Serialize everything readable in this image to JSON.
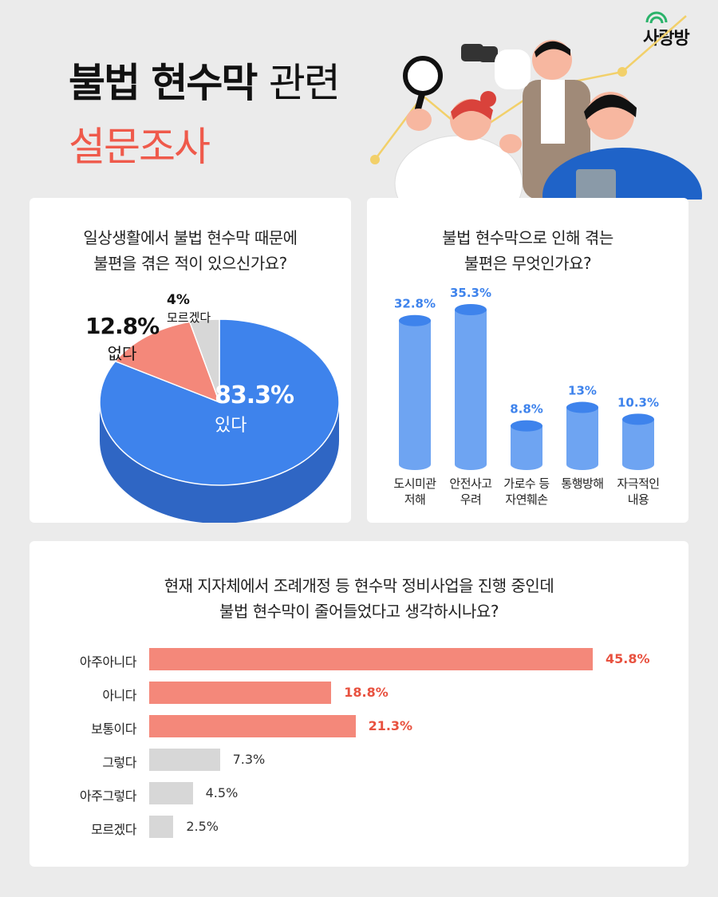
{
  "header": {
    "title_bold": "불법 현수막",
    "title_light": "관련",
    "title_line2": "설문조사",
    "logo_text": "사랑방"
  },
  "colors": {
    "blue": "#3e83ec",
    "blue_dark": "#2f66c4",
    "salmon": "#f4887a",
    "salmon_dark": "#d46a5e",
    "gray": "#d7d7d7",
    "gray_dark": "#b9b9b9",
    "bar_blue": "#6ea4f2",
    "accent_red": "#e8513f"
  },
  "survey1": {
    "question_line1": "일상생활에서 불법 현수막 때문에",
    "question_line2": "불편을 겪은 적이 있으신가요?",
    "slices": [
      {
        "pct": "83.3%",
        "label": "있다"
      },
      {
        "pct": "12.8%",
        "label": "없다"
      },
      {
        "pct": "4%",
        "label": "모르겠다"
      }
    ]
  },
  "survey2": {
    "question_line1": "불법 현수막으로 인해 겪는",
    "question_line2": "불편은 무엇인가요?",
    "bars": [
      {
        "value_label": "32.8%",
        "cap1": "도시미관",
        "cap2": "저해"
      },
      {
        "value_label": "35.3%",
        "cap1": "안전사고",
        "cap2": "우려"
      },
      {
        "value_label": "8.8%",
        "cap1": "가로수 등",
        "cap2": "자연훼손"
      },
      {
        "value_label": "13%",
        "cap1": "통행방해",
        "cap2": ""
      },
      {
        "value_label": "10.3%",
        "cap1": "자극적인",
        "cap2": "내용"
      }
    ]
  },
  "survey3": {
    "question_line1": "현재 지자체에서 조례개정 등 현수막 정비사업을 진행 중인데",
    "question_line2": "불법 현수막이 줄어들었다고 생각하시나요?",
    "rows": [
      {
        "label": "아주아니다",
        "value_label": "45.8%"
      },
      {
        "label": "아니다",
        "value_label": "18.8%"
      },
      {
        "label": "보통이다",
        "value_label": "21.3%"
      },
      {
        "label": "그렇다",
        "value_label": "7.3%"
      },
      {
        "label": "아주그렇다",
        "value_label": "4.5%"
      },
      {
        "label": "모르겠다",
        "value_label": "2.5%"
      }
    ]
  },
  "chart_data": [
    {
      "type": "pie",
      "title": "일상생활에서 불법 현수막 때문에 불편을 겪은 적이 있으신가요?",
      "categories": [
        "있다",
        "없다",
        "모르겠다"
      ],
      "values": [
        83.3,
        12.8,
        4
      ]
    },
    {
      "type": "bar",
      "title": "불법 현수막으로 인해 겪는 불편은 무엇인가요?",
      "categories": [
        "도시미관 저해",
        "안전사고 우려",
        "가로수 등 자연훼손",
        "통행방해",
        "자극적인 내용"
      ],
      "values": [
        32.8,
        35.3,
        8.8,
        13,
        10.3
      ]
    },
    {
      "type": "bar",
      "orientation": "horizontal",
      "title": "현재 지자체에서 조례개정 등 현수막 정비사업을 진행 중인데 불법 현수막이 줄어들었다고 생각하시나요?",
      "categories": [
        "아주아니다",
        "아니다",
        "보통이다",
        "그렇다",
        "아주그렇다",
        "모르겠다"
      ],
      "values": [
        45.8,
        18.8,
        21.3,
        7.3,
        4.5,
        2.5
      ]
    }
  ]
}
